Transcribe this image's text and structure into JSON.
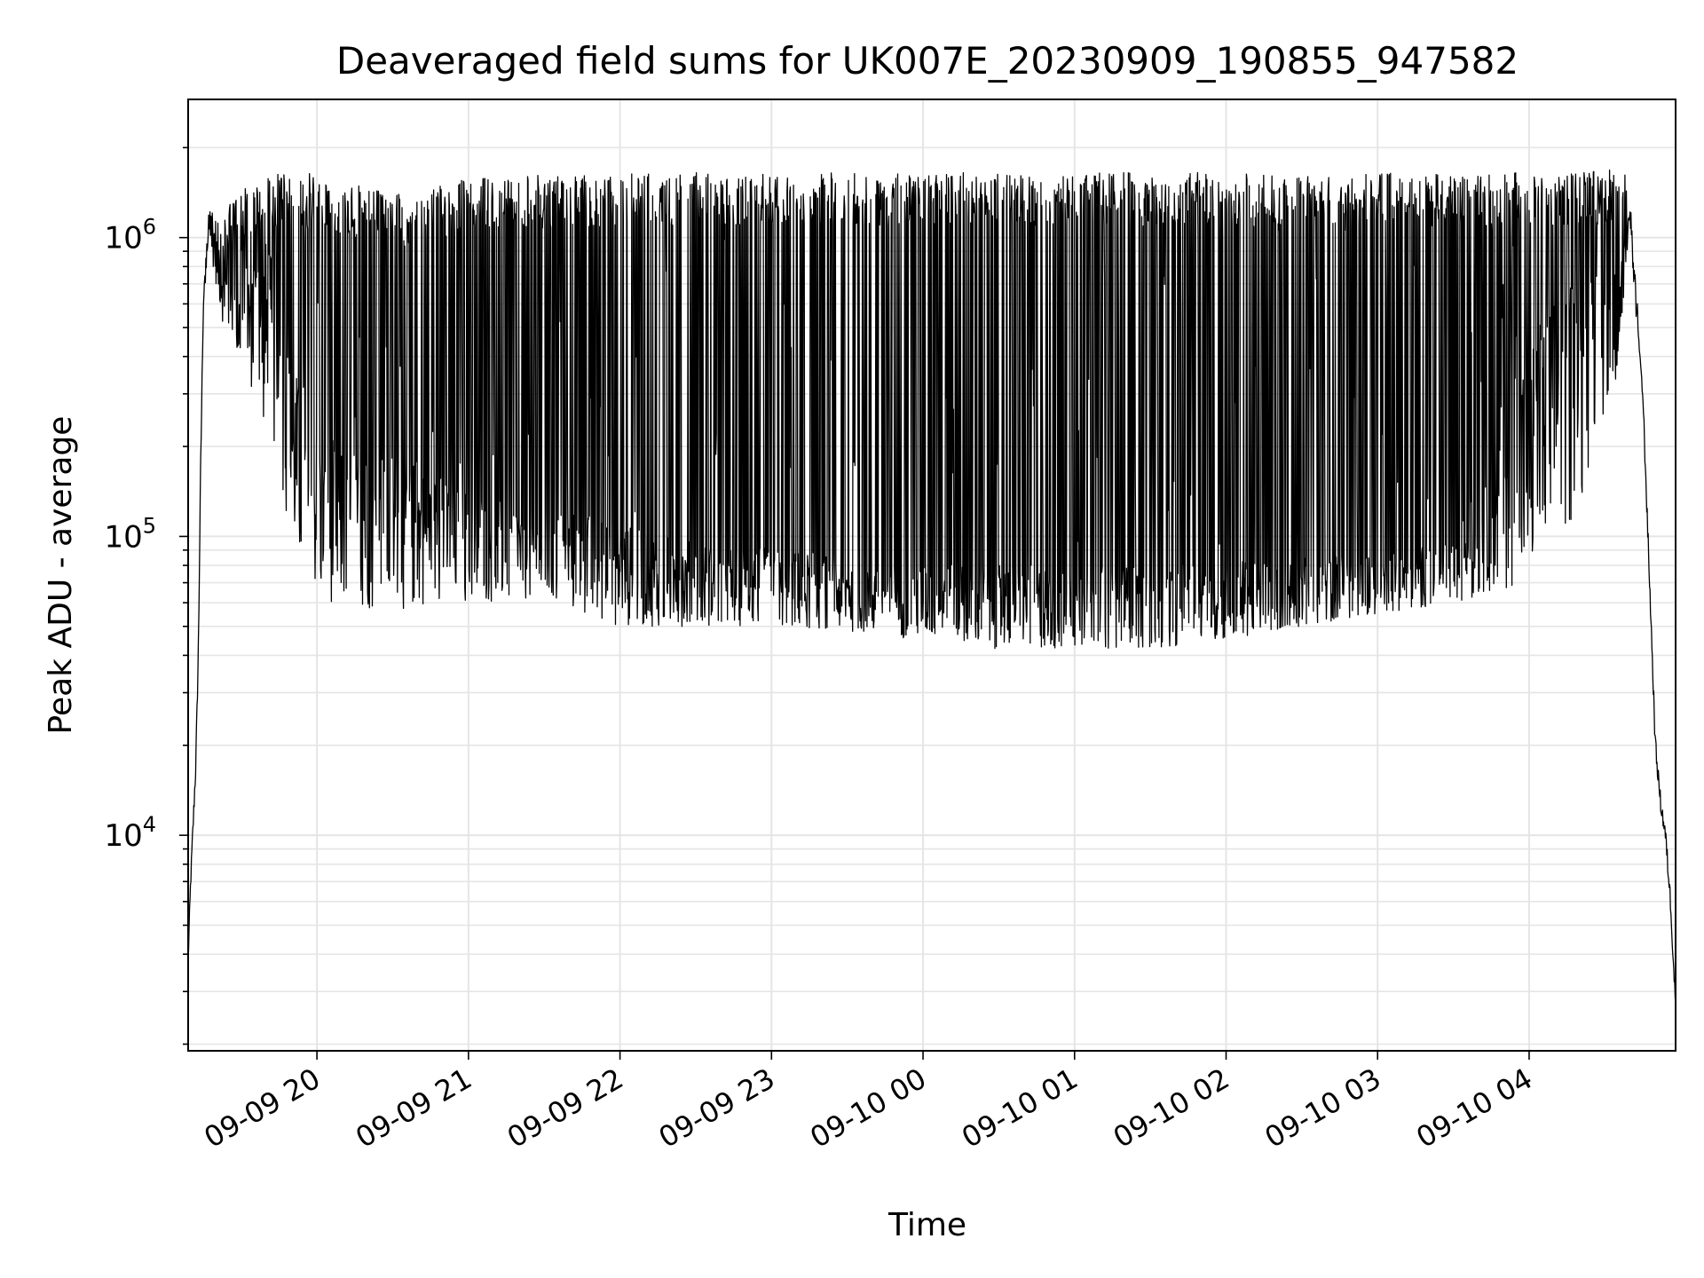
{
  "chart_data": {
    "type": "line",
    "title": "Deaveraged field sums for UK007E_20230909_190855_947582",
    "xlabel": "Time",
    "ylabel": "Peak ADU - average",
    "yscale": "log",
    "xlim": [
      "2023-09-09 19:09",
      "2023-09-10 04:58"
    ],
    "ylim": [
      1900,
      2900000
    ],
    "grid": true,
    "grid_color": "#e5e5e5",
    "line_color": "#000000",
    "x_ticks": [
      {
        "t": "2023-09-09 20:00",
        "label": "09-09 20"
      },
      {
        "t": "2023-09-09 21:00",
        "label": "09-09 21"
      },
      {
        "t": "2023-09-09 22:00",
        "label": "09-09 22"
      },
      {
        "t": "2023-09-09 23:00",
        "label": "09-09 23"
      },
      {
        "t": "2023-09-10 00:00",
        "label": "09-10 00"
      },
      {
        "t": "2023-09-10 01:00",
        "label": "09-10 01"
      },
      {
        "t": "2023-09-10 02:00",
        "label": "09-10 02"
      },
      {
        "t": "2023-09-10 03:00",
        "label": "09-10 03"
      },
      {
        "t": "2023-09-10 04:00",
        "label": "09-10 04"
      }
    ],
    "y_ticks": [
      {
        "value": 10000,
        "base": "10",
        "exp": "4"
      },
      {
        "value": 100000,
        "base": "10",
        "exp": "5"
      },
      {
        "value": 1000000,
        "base": "10",
        "exp": "6"
      }
    ],
    "series": [
      {
        "x": [
          "2023-09-09 19:09",
          "2023-09-09 19:10",
          "2023-09-09 19:11",
          "2023-09-09 19:12",
          "2023-09-09 19:13",
          "2023-09-09 19:14",
          "2023-09-09 19:15",
          "2023-09-09 19:17",
          "2023-09-09 19:20",
          "2023-09-09 19:25",
          "2023-09-09 19:30",
          "2023-09-09 19:35",
          "2023-09-09 19:40",
          "2023-09-09 19:45",
          "2023-09-09 19:50",
          "2023-09-09 19:55",
          "2023-09-09 20:05",
          "2023-09-09 20:15",
          "2023-09-09 20:30",
          "2023-09-09 20:45",
          "2023-09-09 21:00",
          "2023-09-09 21:15",
          "2023-09-09 21:30",
          "2023-09-09 21:45",
          "2023-09-09 21:55",
          "2023-09-09 22:05",
          "2023-09-09 22:20",
          "2023-09-09 22:40",
          "2023-09-09 23:00",
          "2023-09-09 23:30",
          "2023-09-10 00:00",
          "2023-09-10 00:30",
          "2023-09-10 01:00",
          "2023-09-10 01:30",
          "2023-09-10 02:00",
          "2023-09-10 02:30",
          "2023-09-10 03:00",
          "2023-09-10 03:30",
          "2023-09-10 04:00",
          "2023-09-10 04:20",
          "2023-09-10 04:35",
          "2023-09-10 04:40",
          "2023-09-10 04:45",
          "2023-09-10 04:48",
          "2023-09-10 04:50",
          "2023-09-10 04:52",
          "2023-09-10 04:54",
          "2023-09-10 04:56",
          "2023-09-10 04:58"
        ],
        "baseline": [
          3800,
          7000,
          11000,
          17000,
          40000,
          180000,
          600000,
          1200000,
          1050000,
          700000,
          600000,
          750000,
          700000,
          500000,
          300000,
          200000,
          160000,
          150000,
          150000,
          130000,
          120000,
          110000,
          105000,
          100000,
          100000,
          90000,
          85000,
          80000,
          80000,
          75000,
          70000,
          70000,
          68000,
          70000,
          72000,
          75000,
          80000,
          85000,
          300000,
          550000,
          650000,
          1200000,
          300000,
          60000,
          20000,
          13000,
          10000,
          6000,
          2700
        ],
        "upper": [
          3800,
          7000,
          11000,
          17000,
          40000,
          180000,
          600000,
          1400000,
          1200000,
          1300000,
          1450000,
          1550000,
          1600000,
          1650000,
          1600000,
          1650000,
          1600000,
          1500000,
          1400000,
          1450000,
          1600000,
          1600000,
          1620000,
          1640000,
          1600000,
          1650000,
          1650000,
          1650000,
          1650000,
          1650000,
          1650000,
          1650000,
          1650000,
          1650000,
          1650000,
          1650000,
          1650000,
          1650000,
          1650000,
          1650000,
          1700000,
          1700000,
          300000,
          60000,
          20000,
          13000,
          10000,
          6000,
          2700
        ],
        "lower": [
          3800,
          7000,
          11000,
          17000,
          40000,
          180000,
          600000,
          1000000,
          700000,
          400000,
          350000,
          300000,
          220000,
          150000,
          100000,
          70000,
          60000,
          58000,
          55000,
          60000,
          60000,
          60000,
          58000,
          55000,
          50000,
          50000,
          50000,
          50000,
          50000,
          48000,
          45000,
          42000,
          42000,
          42000,
          45000,
          50000,
          55000,
          60000,
          70000,
          120000,
          350000,
          1000000,
          300000,
          60000,
          20000,
          13000,
          10000,
          6000,
          2700
        ]
      }
    ]
  }
}
